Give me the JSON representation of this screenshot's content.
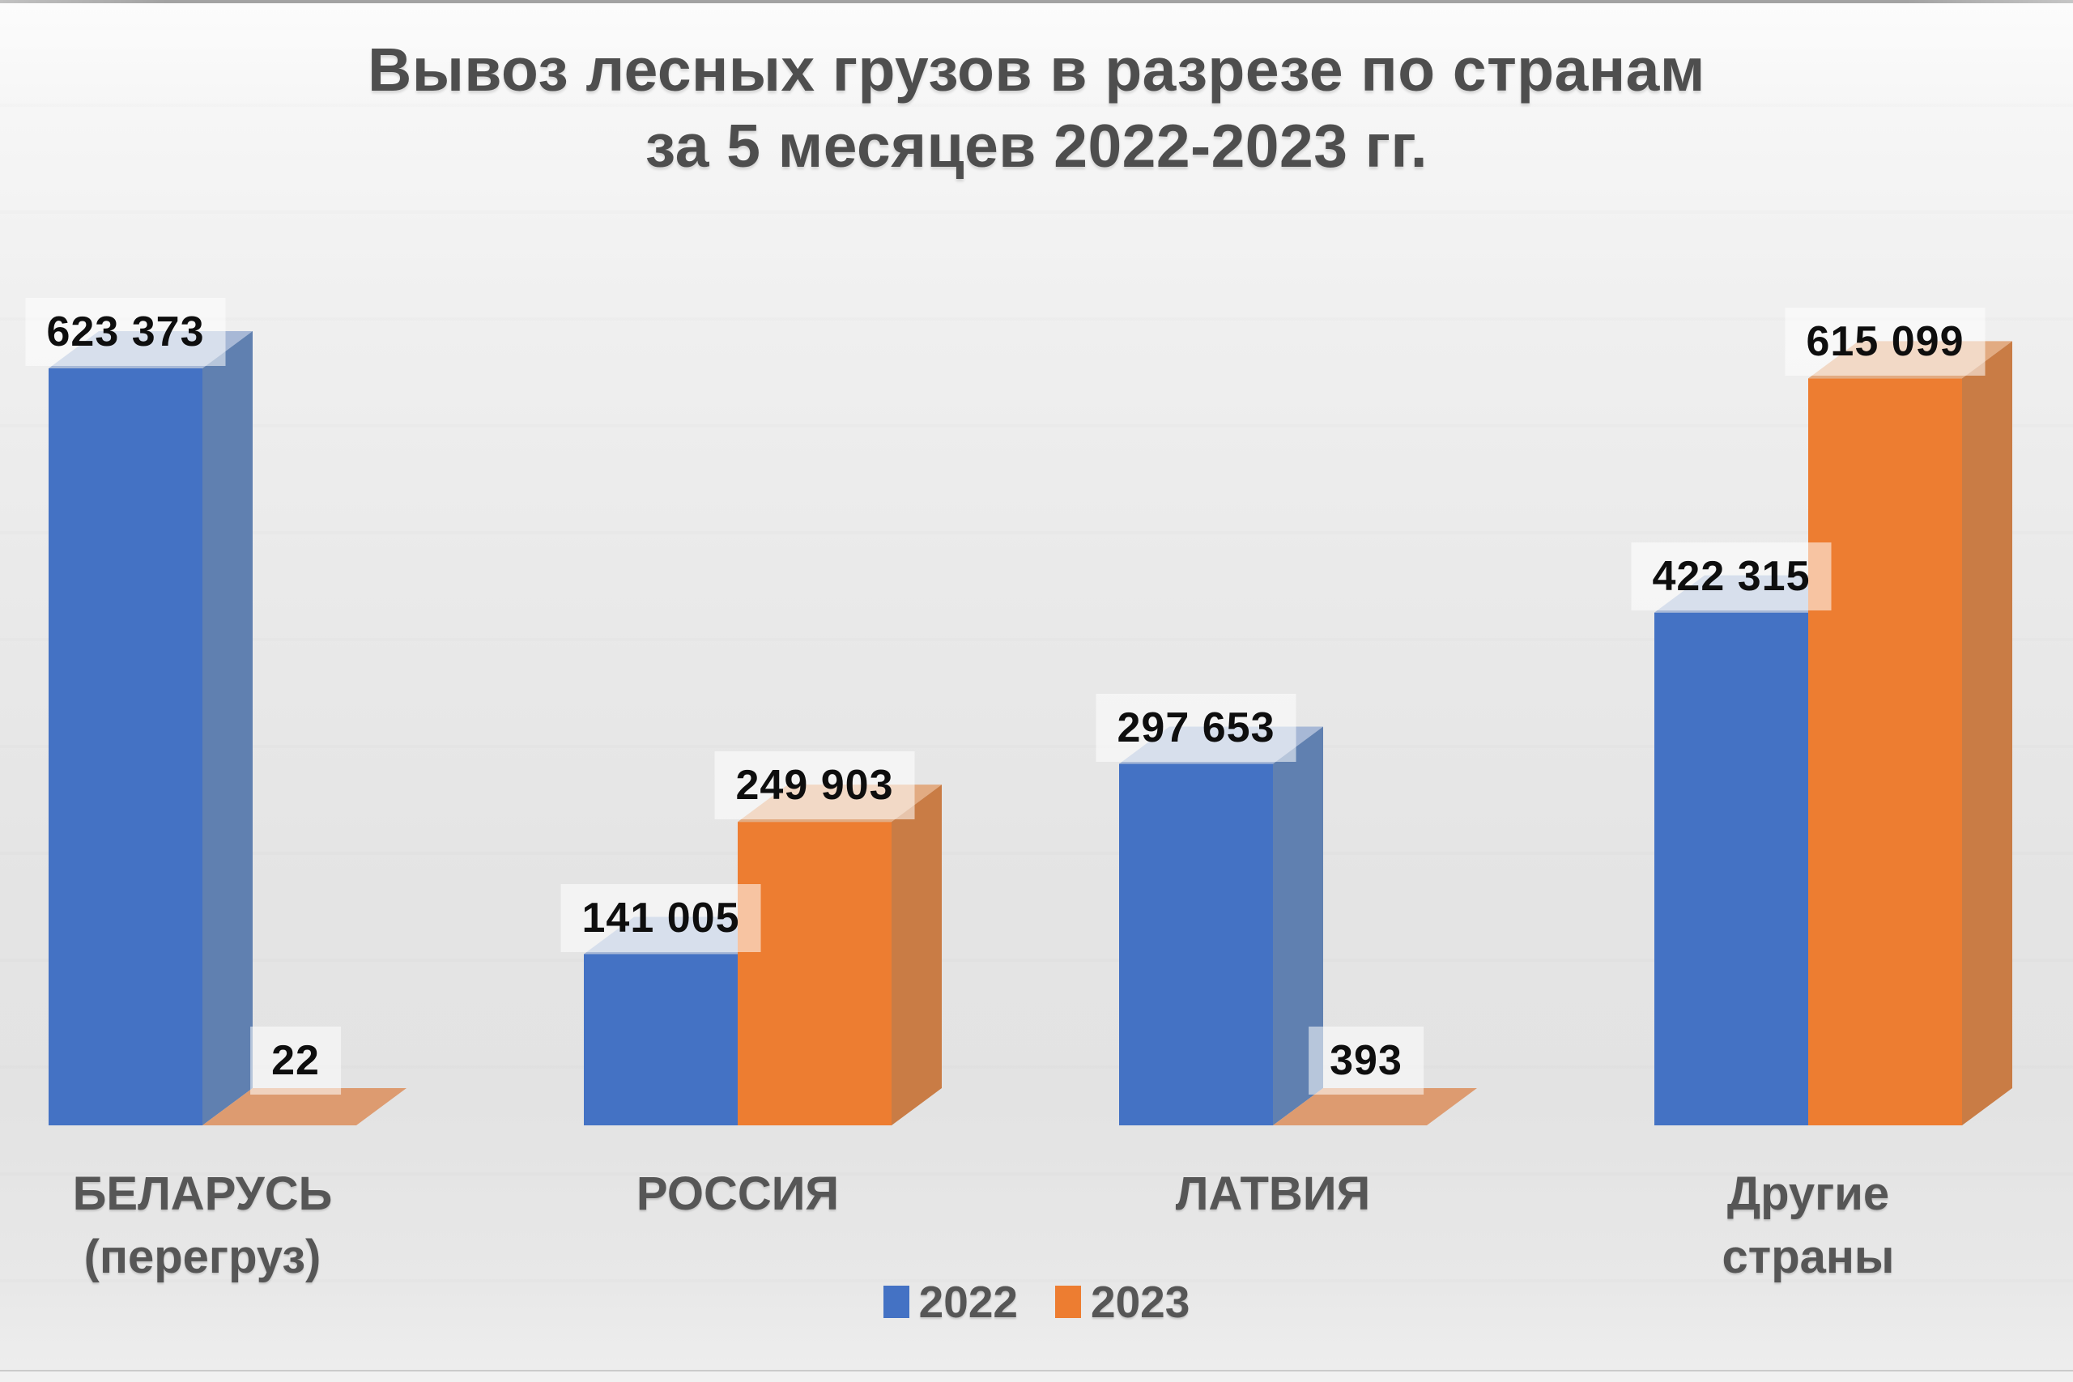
{
  "title": {
    "line1": "Вывоз лесных грузов в разрезе по странам",
    "line2": "за 5 месяцев 2022-2023 гг."
  },
  "chart_data": {
    "type": "bar",
    "style": "3d-column",
    "title": "Вывоз лесных грузов в разрезе по странам за 5 месяцев 2022-2023 гг.",
    "categories": [
      "БЕЛАРУСЬ\n(перегруз)",
      "РОССИЯ",
      "ЛАТВИЯ",
      "Другие страны"
    ],
    "series": [
      {
        "name": "2022",
        "color": "#4472C4",
        "color_top": "#A7B8D6",
        "color_side": "#6080B0",
        "values": [
          623373,
          141005,
          297653,
          422315
        ],
        "value_labels": [
          "623 373",
          "141 005",
          "297 653",
          "422 315"
        ]
      },
      {
        "name": "2023",
        "color": "#ED7D31",
        "color_top": "#E2AB82",
        "color_side": "#C97C45",
        "color_flat": "#DD9B70",
        "values": [
          22,
          249903,
          393,
          615099
        ],
        "value_labels": [
          "22",
          "249 903",
          "393",
          "615 099"
        ]
      }
    ],
    "ylim": [
      0,
      623373
    ],
    "legend_position": "bottom",
    "axes_visible": false,
    "gridlines": false
  },
  "colors": {
    "title_text": "#4e4e4e",
    "category_text": "#565656",
    "value_text": "#0e0e0e",
    "value_label_background": "rgba(255,255,255,0.55)",
    "background_top": "#fcfcfc",
    "background_bottom": "#e8e8e8"
  }
}
